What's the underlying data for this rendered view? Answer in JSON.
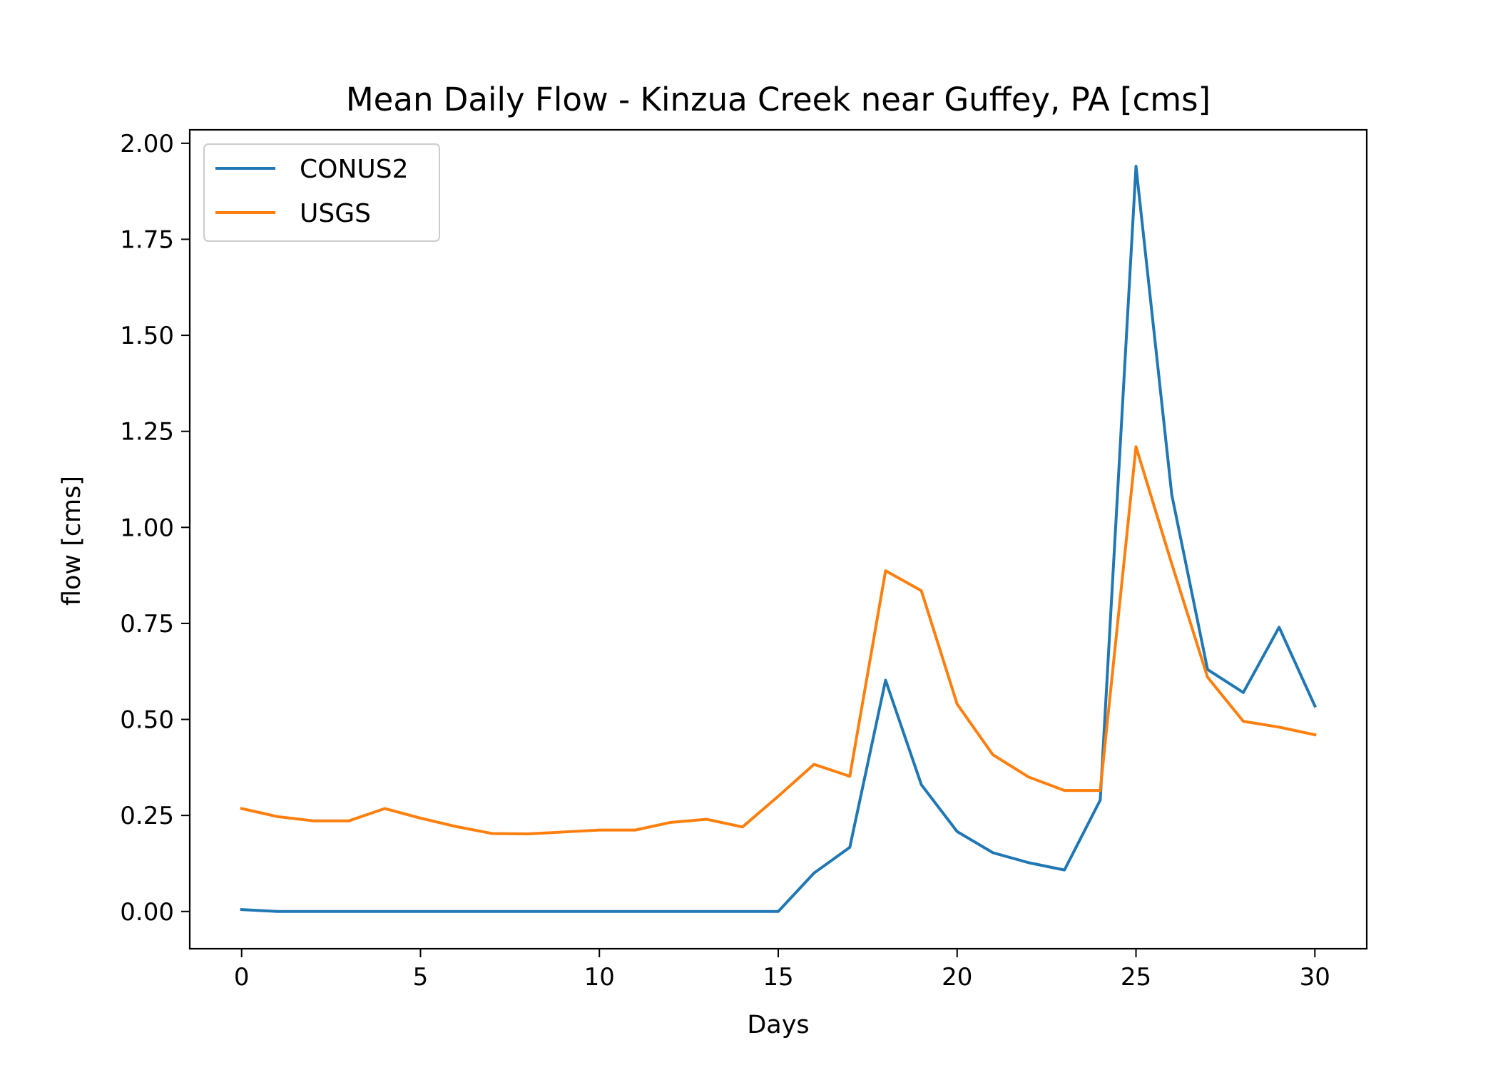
{
  "chart_data": {
    "type": "line",
    "title": "Mean Daily Flow - Kinzua Creek near Guffey, PA [cms]",
    "xlabel": "Days",
    "ylabel": "flow [cms]",
    "xlim": [
      -1.45,
      31.45
    ],
    "ylim": [
      -0.097,
      2.035
    ],
    "xticks": [
      0,
      5,
      10,
      15,
      20,
      25,
      30
    ],
    "xtick_labels": [
      "0",
      "5",
      "10",
      "15",
      "20",
      "25",
      "30"
    ],
    "yticks": [
      0,
      0.25,
      0.5,
      0.75,
      1.0,
      1.25,
      1.5,
      1.75,
      2.0
    ],
    "ytick_labels": [
      "0.00",
      "0.25",
      "0.50",
      "0.75",
      "1.00",
      "1.25",
      "1.50",
      "1.75",
      "2.00"
    ],
    "grid": false,
    "legend_position": "top-left",
    "x": [
      0,
      1,
      2,
      3,
      4,
      5,
      6,
      7,
      8,
      9,
      10,
      11,
      12,
      13,
      14,
      15,
      16,
      17,
      18,
      19,
      20,
      21,
      22,
      23,
      24,
      25,
      26,
      27,
      28,
      29,
      30
    ],
    "series": [
      {
        "name": "CONUS2",
        "color": "#1f77b4",
        "values": [
          0.005,
          0.0,
          0.0,
          0.0,
          0.0,
          0.0,
          0.0,
          0.0,
          0.0,
          0.0,
          0.0,
          0.0,
          0.0,
          0.0,
          0.0,
          0.0,
          0.1,
          0.167,
          0.602,
          0.33,
          0.208,
          0.153,
          0.127,
          0.108,
          0.29,
          1.94,
          1.085,
          0.63,
          0.57,
          0.74,
          0.535
        ]
      },
      {
        "name": "USGS",
        "color": "#ff7f0e",
        "values": [
          0.268,
          0.247,
          0.236,
          0.236,
          0.268,
          0.243,
          0.221,
          0.203,
          0.202,
          0.207,
          0.212,
          0.212,
          0.232,
          0.24,
          0.22,
          0.3,
          0.383,
          0.352,
          0.887,
          0.835,
          0.54,
          0.408,
          0.35,
          0.315,
          0.315,
          1.21,
          0.905,
          0.61,
          0.495,
          0.48,
          0.46
        ]
      }
    ]
  }
}
